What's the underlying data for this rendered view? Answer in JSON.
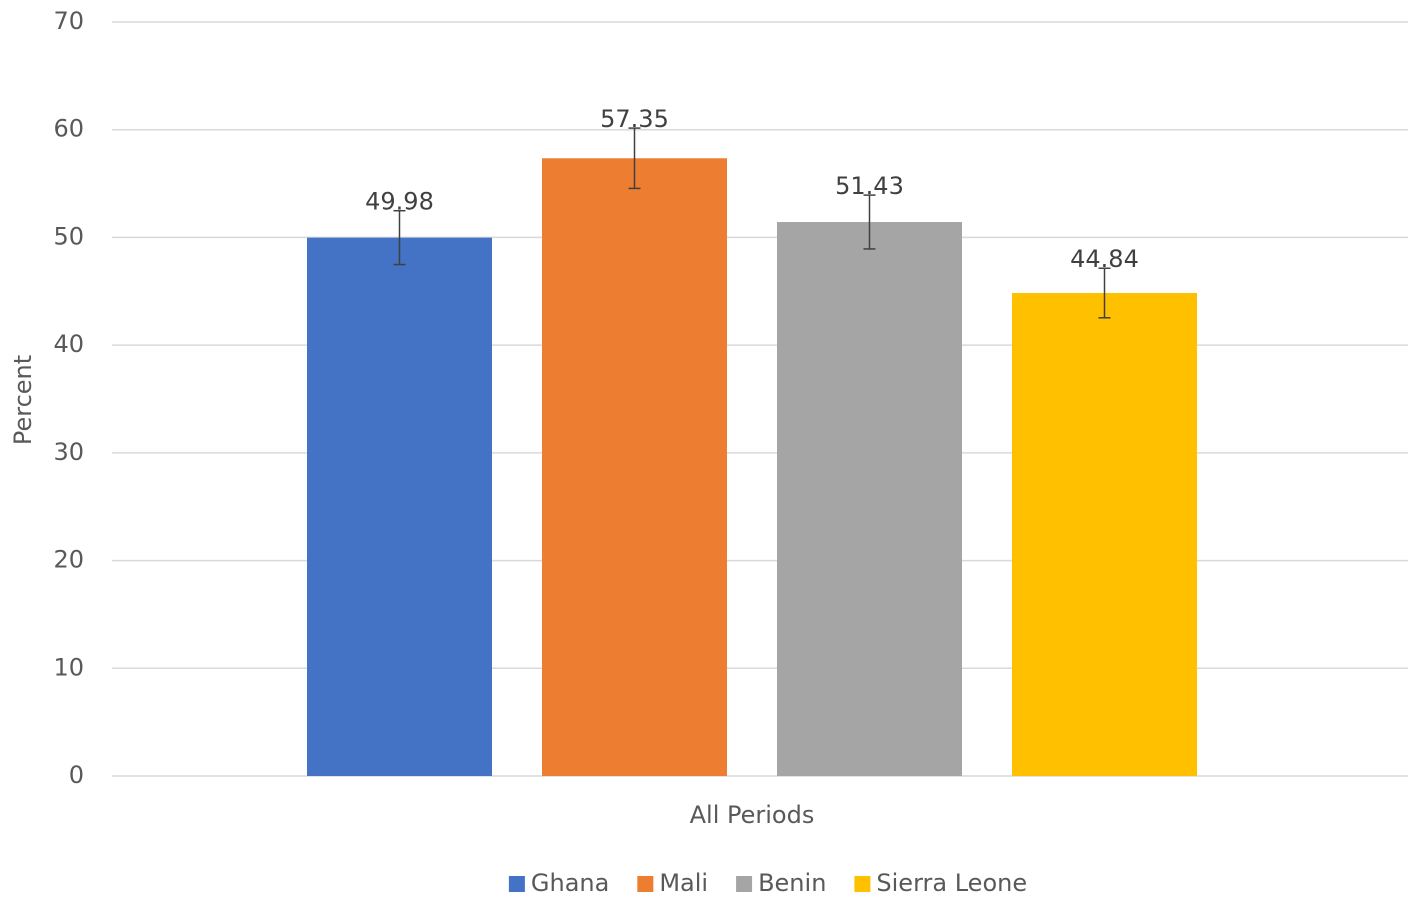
{
  "chart_data": {
    "type": "bar",
    "y_label": "Percent",
    "categories": [
      "All Periods"
    ],
    "series": [
      {
        "name": "Ghana",
        "color": "#4472c4",
        "values": [
          49.98
        ],
        "errors": [
          2.5
        ]
      },
      {
        "name": "Mali",
        "color": "#ed7d31",
        "values": [
          57.35
        ],
        "errors": [
          2.8
        ]
      },
      {
        "name": "Benin",
        "color": "#a5a5a5",
        "values": [
          51.43
        ],
        "errors": [
          2.5
        ]
      },
      {
        "name": "Sierra Leone",
        "color": "#ffc000",
        "values": [
          44.84
        ],
        "errors": [
          2.3
        ]
      }
    ],
    "ylim": [
      0,
      70
    ],
    "yticks": [
      0,
      10,
      20,
      30,
      40,
      50,
      60,
      70
    ],
    "grid": true,
    "legend": "bottom"
  }
}
